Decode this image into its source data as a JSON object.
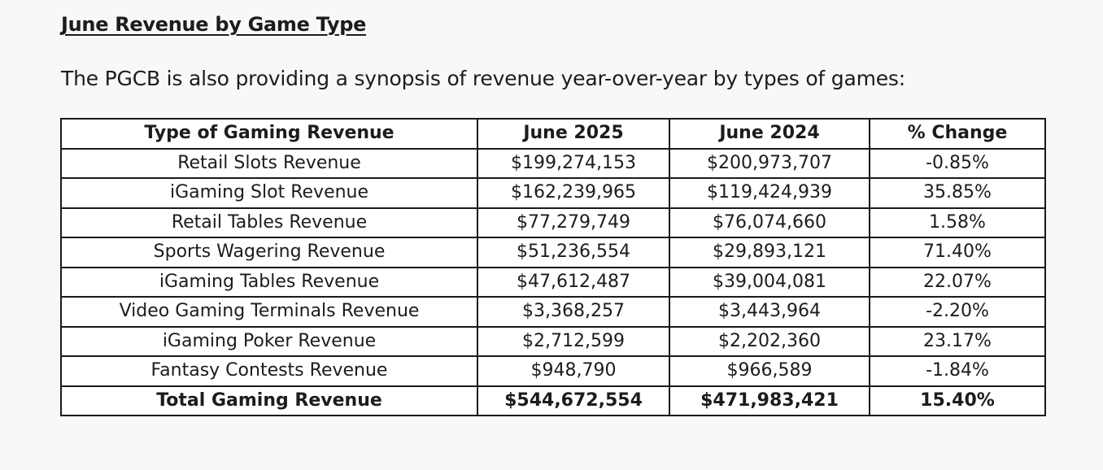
{
  "heading": "June Revenue by Game Type",
  "intro": "The PGCB is also providing a synopsis of revenue year-over-year by types of games:",
  "table": {
    "headers": [
      "Type of Gaming Revenue",
      "June 2025",
      "June 2024",
      "% Change"
    ],
    "rows": [
      [
        "Retail Slots Revenue",
        "$199,274,153",
        "$200,973,707",
        "-0.85%"
      ],
      [
        "iGaming Slot Revenue",
        "$162,239,965",
        "$119,424,939",
        "35.85%"
      ],
      [
        "Retail Tables Revenue",
        "$77,279,749",
        "$76,074,660",
        "1.58%"
      ],
      [
        "Sports Wagering Revenue",
        "$51,236,554",
        "$29,893,121",
        "71.40%"
      ],
      [
        "iGaming Tables Revenue",
        "$47,612,487",
        "$39,004,081",
        "22.07%"
      ],
      [
        "Video Gaming Terminals Revenue",
        "$3,368,257",
        "$3,443,964",
        "-2.20%"
      ],
      [
        "iGaming Poker Revenue",
        "$2,712,599",
        "$2,202,360",
        "23.17%"
      ],
      [
        "Fantasy Contests Revenue",
        "$948,790",
        "$966,589",
        "-1.84%"
      ]
    ],
    "total": [
      "Total Gaming Revenue",
      "$544,672,554",
      "$471,983,421",
      "15.40%"
    ]
  }
}
